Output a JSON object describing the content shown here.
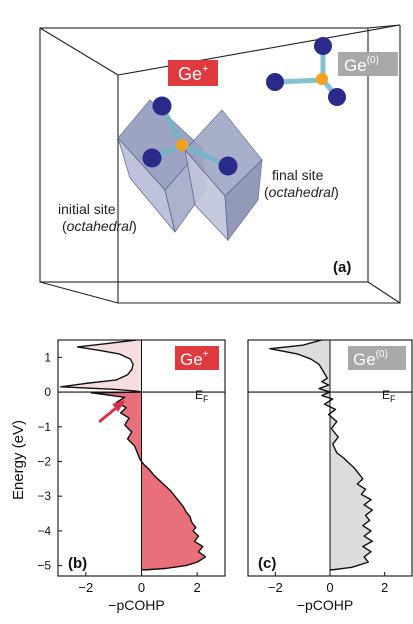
{
  "panel_a": {
    "tag_ge_plus": "Ge",
    "tag_ge_plus_sup": "+",
    "tag_ge0": "Ge",
    "tag_ge0_sup": "(0)",
    "initial_site_line1": "initial site",
    "initial_site_line2_open": "(",
    "initial_site_line2_italic": "octahedral",
    "initial_site_line2_close": ")",
    "final_site_line1": "final site",
    "final_site_line2_open": "(",
    "final_site_line2_italic": "octahedral",
    "final_site_line2_close": ")",
    "panel_label": "(a)"
  },
  "colors": {
    "ge_plus_red": "#e03a3e",
    "ge0_grey": "#a8a8a8",
    "fill_b": "#e9707a",
    "fill_b_light": "#f6dde0",
    "fill_c": "#dcdcdc",
    "atom_blue": "#2a2a8a",
    "atom_orange": "#f2a21d",
    "octa_face": "#9aa2c2",
    "arrow_red": "#d8304a"
  },
  "chart_data": [
    {
      "type": "area",
      "panel_label": "(b)",
      "tag": "Ge",
      "tag_sup": "+",
      "fermi_label": "E",
      "fermi_sub": "F",
      "xlabel": "−pCOHP",
      "ylabel": "Energy (eV)",
      "xlim": [
        -3,
        3
      ],
      "ylim": [
        -5.3,
        1.5
      ],
      "xticks": [
        "−2",
        "0",
        "2"
      ],
      "yticks": [
        "1",
        "0",
        "−1",
        "−2",
        "−3",
        "−4",
        "−5"
      ],
      "ytick_values": [
        1,
        0,
        -1,
        -2,
        -3,
        -4,
        -5
      ],
      "xtick_values": [
        -2,
        0,
        2
      ],
      "curve": [
        [
          -0.2,
          1.5
        ],
        [
          -1.2,
          1.4
        ],
        [
          -2.3,
          1.3
        ],
        [
          -1.5,
          1.2
        ],
        [
          -0.8,
          1.1
        ],
        [
          -0.4,
          0.95
        ],
        [
          -0.3,
          0.8
        ],
        [
          -0.35,
          0.65
        ],
        [
          -0.5,
          0.5
        ],
        [
          -0.9,
          0.35
        ],
        [
          -2.0,
          0.25
        ],
        [
          -2.9,
          0.15
        ],
        [
          -1.0,
          0.08
        ],
        [
          -0.2,
          0.03
        ],
        [
          0.0,
          0.0
        ],
        [
          -1.8,
          -0.02
        ],
        [
          -0.6,
          -0.15
        ],
        [
          -0.9,
          -0.3
        ],
        [
          -0.55,
          -0.45
        ],
        [
          -0.75,
          -0.6
        ],
        [
          -0.45,
          -0.75
        ],
        [
          -0.6,
          -0.95
        ],
        [
          -0.35,
          -1.15
        ],
        [
          -0.5,
          -1.35
        ],
        [
          -0.25,
          -1.55
        ],
        [
          -0.15,
          -1.75
        ],
        [
          -0.05,
          -1.95
        ],
        [
          0.1,
          -2.1
        ],
        [
          0.3,
          -2.25
        ],
        [
          0.45,
          -2.4
        ],
        [
          0.65,
          -2.55
        ],
        [
          0.85,
          -2.7
        ],
        [
          1.05,
          -2.85
        ],
        [
          1.2,
          -3.0
        ],
        [
          1.35,
          -3.15
        ],
        [
          1.5,
          -3.3
        ],
        [
          1.6,
          -3.45
        ],
        [
          1.75,
          -3.6
        ],
        [
          1.8,
          -3.75
        ],
        [
          1.95,
          -3.9
        ],
        [
          1.85,
          -4.0
        ],
        [
          2.05,
          -4.15
        ],
        [
          1.9,
          -4.3
        ],
        [
          2.2,
          -4.45
        ],
        [
          2.05,
          -4.6
        ],
        [
          2.3,
          -4.75
        ],
        [
          2.0,
          -4.9
        ],
        [
          1.6,
          -5.0
        ],
        [
          0.9,
          -5.08
        ],
        [
          0.2,
          -5.12
        ],
        [
          0.0,
          -5.12
        ]
      ],
      "annotation": "arrow",
      "annotation_target": [
        -0.55,
        -0.2
      ]
    },
    {
      "type": "area",
      "panel_label": "(c)",
      "tag": "Ge",
      "tag_sup": "(0)",
      "fermi_label": "E",
      "fermi_sub": "F",
      "xlabel": "−pCOHP",
      "ylabel": "",
      "xlim": [
        -3,
        3
      ],
      "ylim": [
        -5.3,
        1.5
      ],
      "xticks": [
        "−2",
        "0",
        "2"
      ],
      "xtick_values": [
        -2,
        0,
        2
      ],
      "curve": [
        [
          -0.3,
          1.5
        ],
        [
          -1.0,
          1.35
        ],
        [
          -2.2,
          1.25
        ],
        [
          -1.2,
          1.1
        ],
        [
          -0.7,
          0.95
        ],
        [
          -0.4,
          0.8
        ],
        [
          -0.25,
          0.6
        ],
        [
          -0.1,
          0.4
        ],
        [
          -0.3,
          0.3
        ],
        [
          -0.05,
          0.2
        ],
        [
          -0.4,
          0.1
        ],
        [
          0.0,
          0.0
        ],
        [
          -0.3,
          -0.1
        ],
        [
          0.1,
          -0.2
        ],
        [
          -0.2,
          -0.35
        ],
        [
          0.2,
          -0.5
        ],
        [
          -0.05,
          -0.65
        ],
        [
          0.25,
          -0.85
        ],
        [
          0.05,
          -1.05
        ],
        [
          0.3,
          -1.3
        ],
        [
          0.1,
          -1.5
        ],
        [
          0.25,
          -1.75
        ],
        [
          0.5,
          -1.9
        ],
        [
          0.7,
          -2.05
        ],
        [
          0.9,
          -2.2
        ],
        [
          1.05,
          -2.35
        ],
        [
          1.2,
          -2.5
        ],
        [
          1.0,
          -2.65
        ],
        [
          1.3,
          -2.8
        ],
        [
          1.15,
          -2.95
        ],
        [
          1.5,
          -3.1
        ],
        [
          1.25,
          -3.25
        ],
        [
          1.55,
          -3.4
        ],
        [
          1.3,
          -3.55
        ],
        [
          1.45,
          -3.7
        ],
        [
          1.2,
          -3.85
        ],
        [
          1.5,
          -4.0
        ],
        [
          1.25,
          -4.15
        ],
        [
          1.55,
          -4.3
        ],
        [
          1.2,
          -4.45
        ],
        [
          1.5,
          -4.6
        ],
        [
          1.25,
          -4.75
        ],
        [
          1.4,
          -4.9
        ],
        [
          0.8,
          -5.05
        ],
        [
          0.1,
          -5.12
        ],
        [
          0.0,
          -5.12
        ]
      ]
    }
  ]
}
